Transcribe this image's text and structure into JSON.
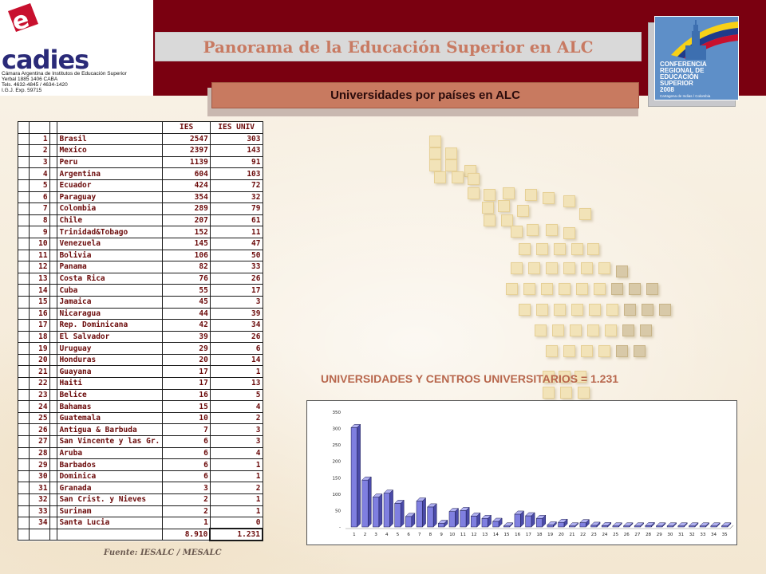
{
  "header": {
    "title": "Panorama de la Educación Superior en ALC",
    "subtitle": "Universidades por países en ALC"
  },
  "logo": {
    "letter": "e",
    "word": "cadies",
    "lines": [
      "Cámara Argentina de Institutos de Educación Superior",
      "Yerbal 1885 1406 CABA",
      "Tels. 4632-4845 / 4634-1420",
      "I.G.J. Exp. 59715"
    ]
  },
  "conference": {
    "lines": [
      "CONFERENCIA",
      "REGIONAL DE",
      "EDUCACIÓN",
      "SUPERIOR",
      "2008"
    ],
    "place": "Cartagena de Indias / Colombia",
    "colors": {
      "blue": "#5e8fc8",
      "yellow": "#f7d117",
      "red": "#c8102e",
      "navy": "#1f3b8a"
    }
  },
  "table": {
    "headers": {
      "ies": "IES",
      "univ": "IES UNIV"
    },
    "rows": [
      {
        "n": "1",
        "country": "Brasil",
        "ies": "2547",
        "univ": "303"
      },
      {
        "n": "2",
        "country": "Mexico",
        "ies": "2397",
        "univ": "143"
      },
      {
        "n": "3",
        "country": "Peru",
        "ies": "1139",
        "univ": "91"
      },
      {
        "n": "4",
        "country": "Argentina",
        "ies": "604",
        "univ": "103"
      },
      {
        "n": "5",
        "country": "Ecuador",
        "ies": "424",
        "univ": "72"
      },
      {
        "n": "6",
        "country": "Paraguay",
        "ies": "354",
        "univ": "32"
      },
      {
        "n": "7",
        "country": "Colombia",
        "ies": "289",
        "univ": "79"
      },
      {
        "n": "8",
        "country": "Chile",
        "ies": "207",
        "univ": "61"
      },
      {
        "n": "9",
        "country": "Trinidad&Tobago",
        "ies": "152",
        "univ": "11"
      },
      {
        "n": "10",
        "country": "Venezuela",
        "ies": "145",
        "univ": "47"
      },
      {
        "n": "11",
        "country": "Bolivia",
        "ies": "106",
        "univ": "50"
      },
      {
        "n": "12",
        "country": "Panama",
        "ies": "82",
        "univ": "33"
      },
      {
        "n": "13",
        "country": "Costa Rica",
        "ies": "76",
        "univ": "26"
      },
      {
        "n": "14",
        "country": "Cuba",
        "ies": "55",
        "univ": "17"
      },
      {
        "n": "15",
        "country": "Jamaica",
        "ies": "45",
        "univ": "3"
      },
      {
        "n": "16",
        "country": "Nicaragua",
        "ies": "44",
        "univ": "39"
      },
      {
        "n": "17",
        "country": "Rep. Dominicana",
        "ies": "42",
        "univ": "34"
      },
      {
        "n": "18",
        "country": "El Salvador",
        "ies": "39",
        "univ": "26"
      },
      {
        "n": "19",
        "country": "Uruguay",
        "ies": "29",
        "univ": "6"
      },
      {
        "n": "20",
        "country": "Honduras",
        "ies": "20",
        "univ": "14"
      },
      {
        "n": "21",
        "country": "Guayana",
        "ies": "17",
        "univ": "1"
      },
      {
        "n": "22",
        "country": "Haiti",
        "ies": "17",
        "univ": "13"
      },
      {
        "n": "23",
        "country": "Belice",
        "ies": "16",
        "univ": "5"
      },
      {
        "n": "24",
        "country": "Bahamas",
        "ies": "15",
        "univ": "4"
      },
      {
        "n": "25",
        "country": "Guatemala",
        "ies": "10",
        "univ": "2"
      },
      {
        "n": "26",
        "country": "Antigua & Barbuda",
        "ies": "7",
        "univ": "3"
      },
      {
        "n": "27",
        "country": "San Vincente y las Gr.",
        "ies": "6",
        "univ": "3"
      },
      {
        "n": "28",
        "country": "Aruba",
        "ies": "6",
        "univ": "4"
      },
      {
        "n": "29",
        "country": "Barbados",
        "ies": "6",
        "univ": "1"
      },
      {
        "n": "30",
        "country": "Dominica",
        "ies": "6",
        "univ": "1"
      },
      {
        "n": "31",
        "country": "Granada",
        "ies": "3",
        "univ": "2"
      },
      {
        "n": "32",
        "country": "San Crist. y Nieves",
        "ies": "2",
        "univ": "1"
      },
      {
        "n": "33",
        "country": "Surinam",
        "ies": "2",
        "univ": "1"
      },
      {
        "n": "34",
        "country": "Santa Lucia",
        "ies": "1",
        "univ": "0"
      }
    ],
    "total": {
      "ies": "8.910",
      "univ": "1.231"
    }
  },
  "source": "Fuente: IESALC / MESALC",
  "headline": "UNIVERSIDADES Y CENTROS UNIVERSITARIOS = 1.231",
  "chart_data": {
    "type": "bar",
    "categories": [
      "1",
      "2",
      "3",
      "4",
      "5",
      "6",
      "7",
      "8",
      "9",
      "10",
      "11",
      "12",
      "13",
      "14",
      "15",
      "16",
      "17",
      "18",
      "19",
      "20",
      "21",
      "22",
      "23",
      "24",
      "25",
      "26",
      "27",
      "28",
      "29",
      "30",
      "31",
      "32",
      "33",
      "34",
      "35"
    ],
    "values": [
      303,
      143,
      91,
      103,
      72,
      32,
      79,
      61,
      11,
      47,
      50,
      33,
      26,
      17,
      3,
      39,
      34,
      26,
      6,
      14,
      1,
      13,
      5,
      4,
      2,
      3,
      3,
      4,
      1,
      1,
      2,
      1,
      1,
      0,
      0
    ],
    "yticks": [
      "350",
      "300",
      "250",
      "200",
      "150",
      "100",
      "50",
      "-"
    ],
    "ylim": [
      0,
      350
    ],
    "title": "",
    "xlabel": "",
    "ylabel": "",
    "bar_color": "#7f7fe0",
    "grid": false
  }
}
